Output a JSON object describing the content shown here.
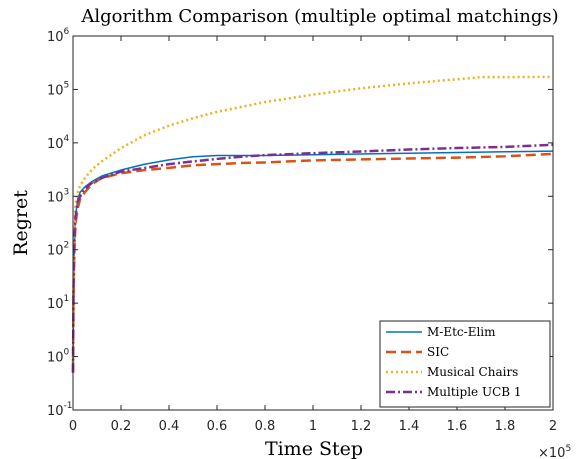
{
  "chart_data": {
    "type": "line",
    "title": "Algorithm Comparison (multiple optimal matchings)",
    "xlabel": "Time Step",
    "ylabel": "Regret",
    "xlim": [
      0,
      200000
    ],
    "ylim": [
      0.1,
      1000000
    ],
    "yscale": "log",
    "x_ticks": [
      0,
      20000,
      40000,
      60000,
      80000,
      100000,
      120000,
      140000,
      160000,
      180000,
      200000
    ],
    "x_tick_labels": [
      "0",
      "0.2",
      "0.4",
      "0.6",
      "0.8",
      "1",
      "1.2",
      "1.4",
      "1.6",
      "1.8",
      "2"
    ],
    "x_multiplier": "×10",
    "x_multiplier_exp": "5",
    "y_ticks": [
      0.1,
      1,
      10,
      100,
      1000,
      10000,
      100000,
      1000000
    ],
    "y_tick_bases": [
      "10",
      "10",
      "10",
      "10",
      "10",
      "10",
      "10",
      "10"
    ],
    "y_tick_exps": [
      "-1",
      "0",
      "1",
      "2",
      "3",
      "4",
      "5",
      "6"
    ],
    "grid": false,
    "legend_position": "bottom-right",
    "series": [
      {
        "name": "M-Etc-Elim",
        "color": "#0072BD",
        "style": "solid",
        "x": [
          1,
          200,
          500,
          1000,
          2000,
          3000,
          5000,
          8000,
          12000,
          20000,
          30000,
          40000,
          50000,
          60000,
          70000,
          80000,
          90000,
          100000,
          120000,
          140000,
          160000,
          180000,
          200000
        ],
        "y": [
          0.5,
          10,
          100,
          400,
          900,
          1200,
          1500,
          1900,
          2400,
          3100,
          4000,
          4800,
          5500,
          5800,
          5800,
          5800,
          5900,
          6000,
          6200,
          6400,
          6600,
          6800,
          7000
        ]
      },
      {
        "name": "SIC",
        "color": "#D95319",
        "style": "dashed",
        "x": [
          1,
          200,
          500,
          1000,
          2000,
          3000,
          5000,
          8000,
          12000,
          20000,
          30000,
          40000,
          50000,
          60000,
          70000,
          80000,
          100000,
          120000,
          140000,
          160000,
          180000,
          200000
        ],
        "y": [
          0.5,
          10,
          80,
          300,
          600,
          900,
          1200,
          1700,
          2200,
          2700,
          3100,
          3400,
          3800,
          4000,
          4200,
          4300,
          4700,
          4900,
          5100,
          5300,
          5600,
          6200
        ]
      },
      {
        "name": "Musical Chairs",
        "color": "#EDB120",
        "style": "dotted",
        "x": [
          1,
          200,
          500,
          1000,
          2000,
          3000,
          5000,
          8000,
          12000,
          20000,
          30000,
          40000,
          50000,
          60000,
          80000,
          100000,
          120000,
          140000,
          160000,
          170000,
          180000,
          200000
        ],
        "y": [
          0.5,
          20,
          150,
          700,
          1200,
          1600,
          2200,
          3200,
          4500,
          8000,
          14000,
          21000,
          29000,
          38000,
          58000,
          80000,
          105000,
          130000,
          155000,
          170000,
          170000,
          172000
        ]
      },
      {
        "name": "Multiple UCB 1",
        "color": "#7E2F8E",
        "style": "dashdot",
        "x": [
          1,
          200,
          500,
          1000,
          2000,
          3000,
          5000,
          8000,
          12000,
          20000,
          30000,
          40000,
          50000,
          60000,
          70000,
          80000,
          100000,
          120000,
          140000,
          160000,
          180000,
          200000
        ],
        "y": [
          0.5,
          15,
          100,
          400,
          800,
          1000,
          1400,
          1800,
          2200,
          2900,
          3400,
          4000,
          4500,
          5000,
          5500,
          5900,
          6400,
          6900,
          7500,
          8000,
          8400,
          9200
        ]
      }
    ]
  }
}
